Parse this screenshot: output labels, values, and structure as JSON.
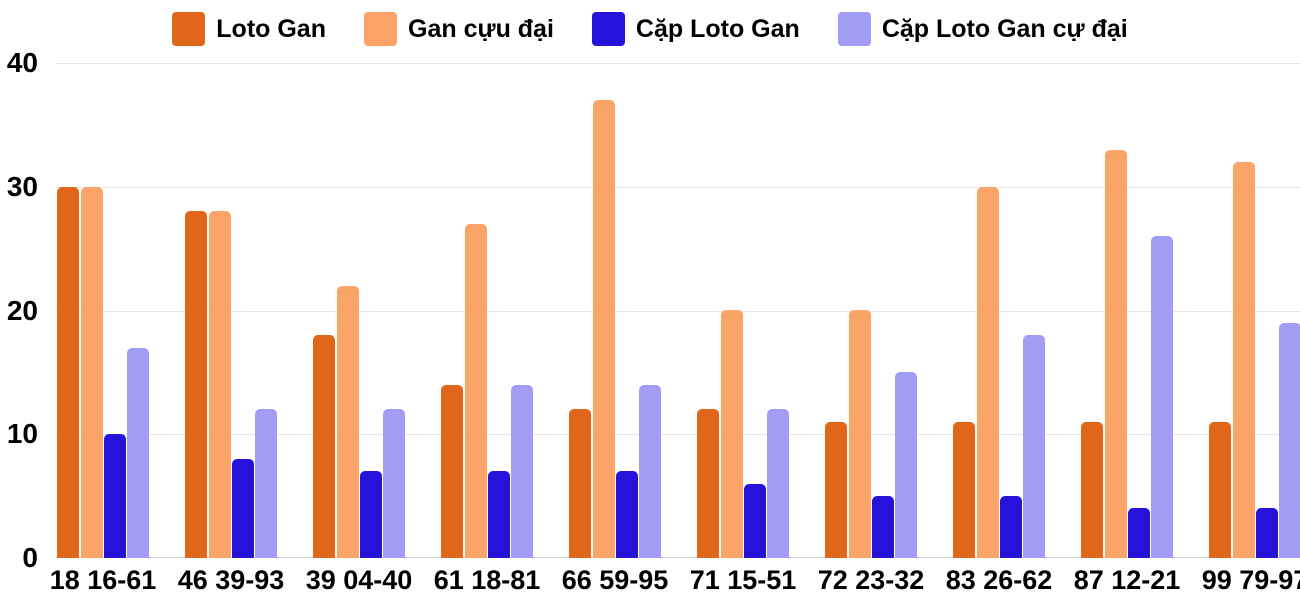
{
  "page": {
    "background": "#ffffff"
  },
  "chart_data": {
    "type": "bar",
    "title": "",
    "xlabel": "",
    "ylabel": "",
    "categories": [
      "18 16-61",
      "46 39-93",
      "39 04-40",
      "61 18-81",
      "66 59-95",
      "71 15-51",
      "72 23-32",
      "83 26-62",
      "87 12-21",
      "99 79-97"
    ],
    "series": [
      {
        "name": "Loto Gan",
        "color": "#E0661A",
        "values": [
          30,
          28,
          18,
          14,
          12,
          12,
          11,
          11,
          11,
          11
        ]
      },
      {
        "name": "Gan cựu đại",
        "color": "#FCA369",
        "values": [
          30,
          28,
          22,
          27,
          37,
          20,
          20,
          30,
          33,
          32
        ]
      },
      {
        "name": "Cặp Loto Gan",
        "color": "#2513DB",
        "values": [
          10,
          8,
          7,
          7,
          7,
          6,
          5,
          5,
          4,
          4
        ]
      },
      {
        "name": "Cặp Loto Gan cự đại",
        "color": "#A49DF6",
        "values": [
          17,
          12,
          12,
          14,
          14,
          12,
          15,
          18,
          26,
          19
        ]
      }
    ],
    "ylim": [
      0,
      40
    ],
    "yticks": [
      0,
      10,
      20,
      30,
      40
    ],
    "grid": true,
    "legend_position": "top",
    "gridline_color": "#E6E6E6",
    "zero_line_color": "#D9D9D9",
    "text_color": "#000000"
  }
}
